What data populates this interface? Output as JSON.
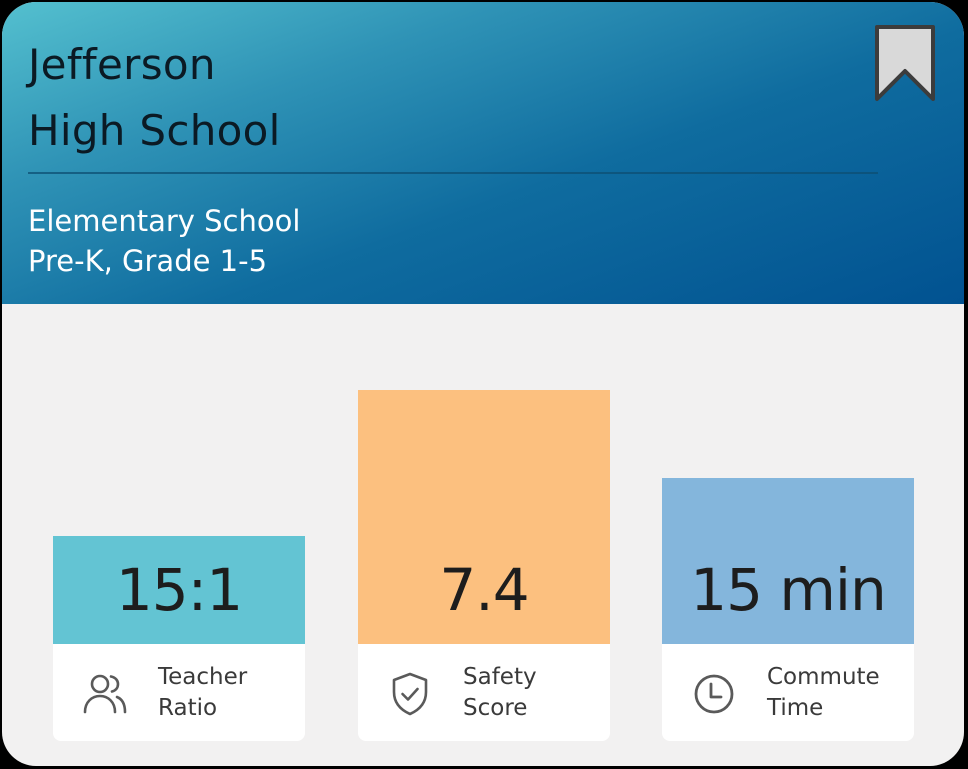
{
  "school": {
    "name_line1": "Jefferson",
    "name_line2": "High School",
    "type": "Elementary School",
    "grades": "Pre-K, Grade 1-5"
  },
  "bookmark_icon": "bookmark-icon",
  "colors": {
    "header_gradient": [
      "#54c0cf",
      "#015291"
    ],
    "teacher_ratio_bar": "#63c4d3",
    "safety_score_bar": "#fcc07f",
    "commute_time_bar": "#84b6dc",
    "card_background": "#f2f1f1"
  },
  "stats": [
    {
      "value": "15:1",
      "label_line1": "Teacher",
      "label_line2": "Ratio",
      "icon": "users-icon"
    },
    {
      "value": "7.4",
      "label_line1": "Safety",
      "label_line2": "Score",
      "icon": "shield-check-icon"
    },
    {
      "value": "15 min",
      "label_line1": "Commute",
      "label_line2": "Time",
      "icon": "clock-icon"
    }
  ]
}
